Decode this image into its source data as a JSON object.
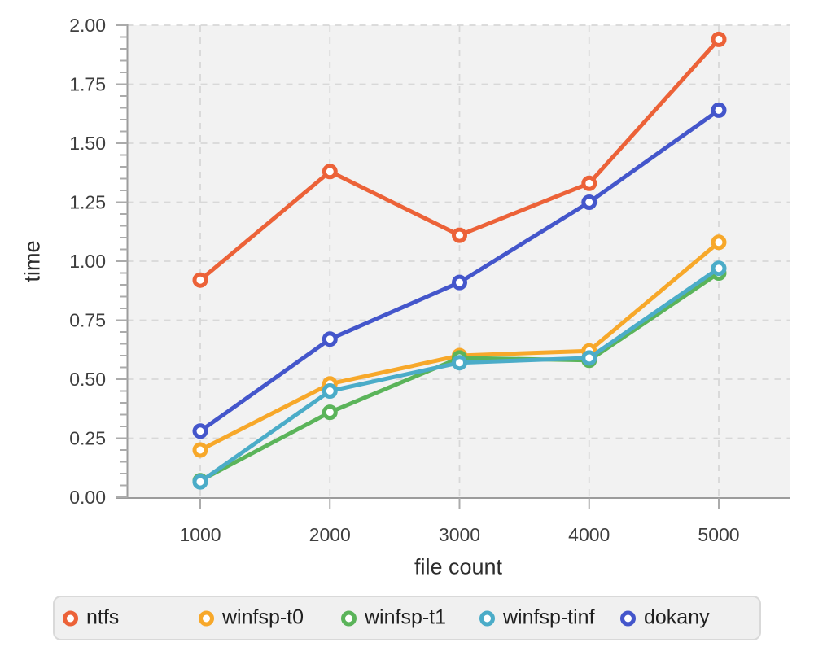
{
  "chart_data": {
    "type": "line",
    "title": "",
    "xlabel": "file count",
    "ylabel": "time",
    "x": [
      1000,
      2000,
      3000,
      4000,
      5000
    ],
    "xtick_labels": [
      "1000",
      "2000",
      "3000",
      "4000",
      "5000"
    ],
    "ylim": [
      0,
      2
    ],
    "ytick_step": 0.25,
    "ytick_labels": [
      "0.00",
      "0.25",
      "0.50",
      "0.75",
      "1.00",
      "1.25",
      "1.50",
      "1.75",
      "2.00"
    ],
    "minor_tick_step": 0.05,
    "grid": "dashed",
    "legend_position": "bottom",
    "marker_style": "open-circle",
    "colors": {
      "plot_background": "#f2f2f2",
      "grid": "#d8d8d8",
      "axis": "#9c9c9c",
      "ticks": "#ababab",
      "tick_labels": "#3f3f3f",
      "axis_titles": "#2d2d2d",
      "legend_background": "#f0f0f0",
      "legend_border": "#d9d9d9",
      "legend_text": "#1f1f1f"
    },
    "series": [
      {
        "name": "ntfs",
        "color": "#EC6238",
        "values": [
          0.92,
          1.38,
          1.11,
          1.33,
          1.94
        ]
      },
      {
        "name": "winfsp-t0",
        "color": "#F7A82A",
        "values": [
          0.2,
          0.48,
          0.6,
          0.62,
          1.08
        ]
      },
      {
        "name": "winfsp-t1",
        "color": "#5BB45A",
        "values": [
          0.07,
          0.36,
          0.59,
          0.58,
          0.95
        ]
      },
      {
        "name": "winfsp-tinf",
        "color": "#4BACC8",
        "values": [
          0.065,
          0.45,
          0.57,
          0.59,
          0.97
        ]
      },
      {
        "name": "dokany",
        "color": "#4456CB",
        "values": [
          0.28,
          0.67,
          0.91,
          1.25,
          1.64
        ]
      }
    ]
  }
}
